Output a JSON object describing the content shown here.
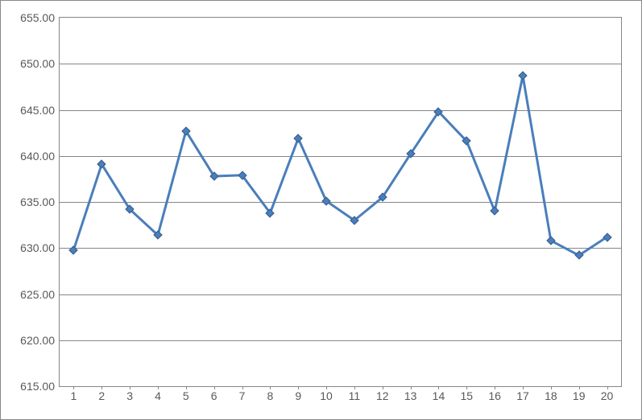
{
  "chart": {
    "type": "line",
    "x_values": [
      1,
      2,
      3,
      4,
      5,
      6,
      7,
      8,
      9,
      10,
      11,
      12,
      13,
      14,
      15,
      16,
      17,
      18,
      19,
      20
    ],
    "y_values": [
      629.8,
      639.1,
      634.2,
      631.4,
      642.7,
      637.8,
      637.9,
      633.8,
      641.9,
      635.1,
      633.0,
      635.5,
      640.2,
      644.8,
      641.6,
      634.0,
      648.7,
      630.8,
      629.2,
      631.2
    ],
    "ylim": [
      615.0,
      655.0
    ],
    "ytick_step": 5.0,
    "y_tick_labels": [
      "615.00",
      "620.00",
      "625.00",
      "630.00",
      "635.00",
      "640.00",
      "645.00",
      "650.00",
      "655.00"
    ],
    "x_tick_labels": [
      "1",
      "2",
      "3",
      "4",
      "5",
      "6",
      "7",
      "8",
      "9",
      "10",
      "11",
      "12",
      "13",
      "14",
      "15",
      "16",
      "17",
      "18",
      "19",
      "20"
    ],
    "line_color": "#4a7ebb",
    "line_width": 3,
    "marker_shape": "diamond",
    "marker_size": 8,
    "marker_fill": "#4a7ebb",
    "marker_stroke": "#385d8a",
    "background_color": "#ffffff",
    "grid_color": "#868686",
    "border_color": "#868686",
    "axis_label_fontsize": 14,
    "axis_label_color": "#595959",
    "plot_area_fill": "#ffffff"
  }
}
